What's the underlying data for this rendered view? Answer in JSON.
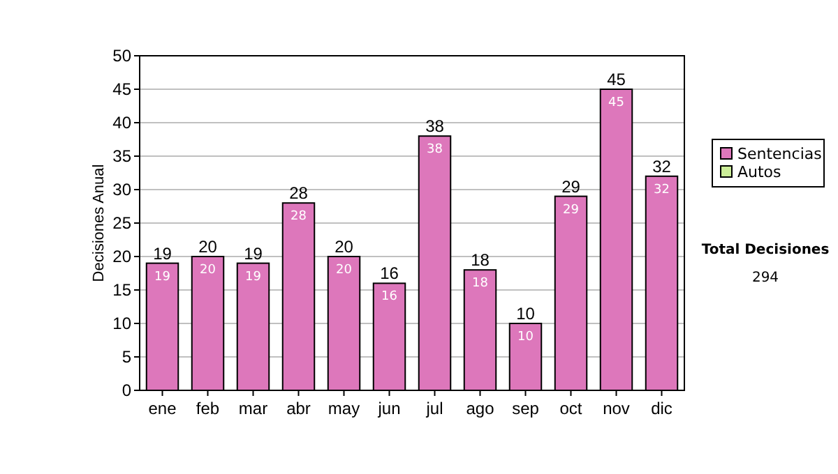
{
  "chart_data": {
    "type": "bar",
    "ylabel": "Decisiones Anual",
    "categories": [
      "ene",
      "feb",
      "mar",
      "abr",
      "may",
      "jun",
      "jul",
      "ago",
      "sep",
      "oct",
      "nov",
      "dic"
    ],
    "series": [
      {
        "name": "Sentencias",
        "color": "#dd77bb",
        "values": [
          19,
          20,
          19,
          28,
          20,
          16,
          38,
          18,
          10,
          29,
          45,
          32
        ]
      },
      {
        "name": "Autos",
        "color": "#ccee99",
        "values": [
          null,
          null,
          null,
          null,
          null,
          null,
          null,
          null,
          null,
          null,
          null,
          null
        ]
      }
    ],
    "stacked": true,
    "data_labels": true,
    "totals": [
      "19",
      "20",
      "19",
      "28",
      "20",
      "16",
      "38",
      "18",
      "10",
      "29",
      "45",
      "32"
    ],
    "ylim": [
      0,
      50
    ],
    "yticks": [
      0,
      5,
      10,
      15,
      20,
      25,
      30,
      35,
      40,
      45,
      50
    ],
    "grid": "y",
    "legend": "right",
    "annotations": [
      "Total Decisiones",
      "294"
    ]
  }
}
